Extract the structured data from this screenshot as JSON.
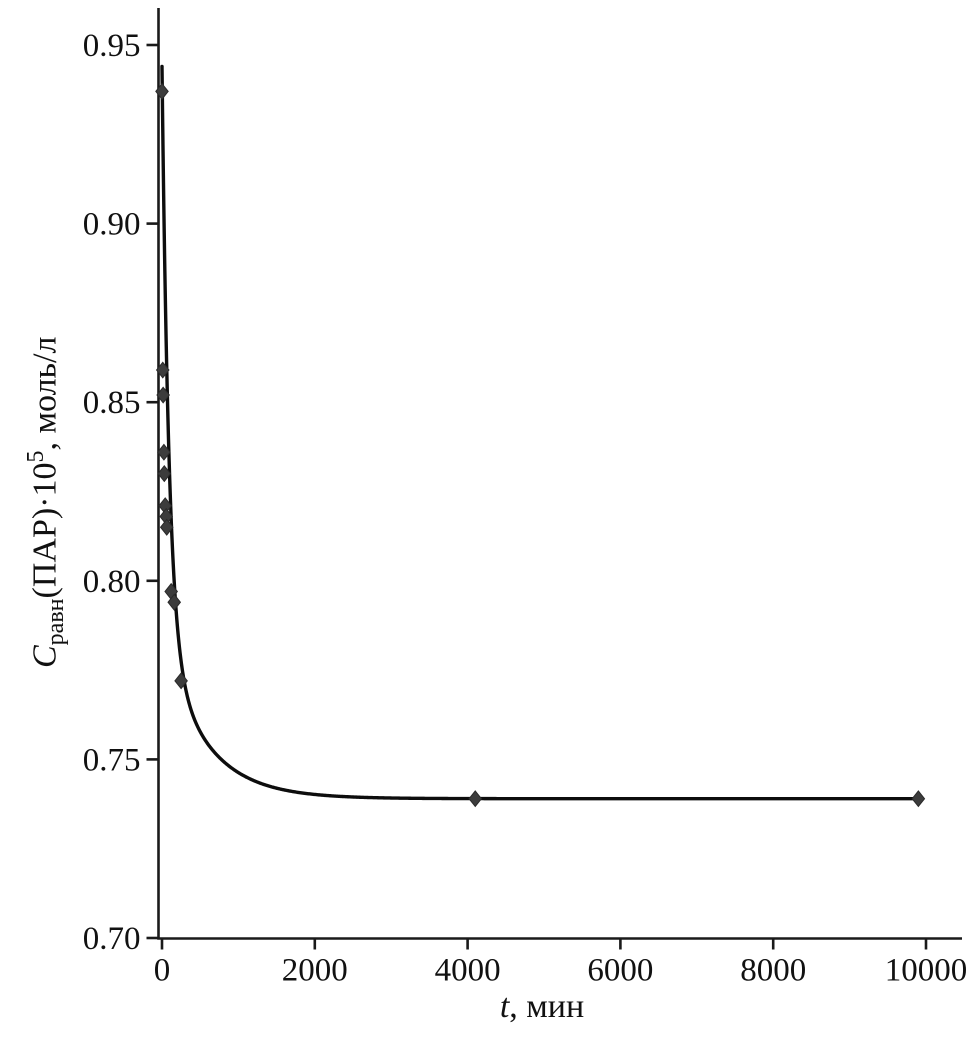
{
  "chart_data": {
    "type": "scatter",
    "title": "",
    "xlabel_parts": {
      "var": "t",
      "rest": ", мин"
    },
    "ylabel_parts": {
      "var": "C",
      "sub": "равн",
      "mid": "(ПАР)·10",
      "sup": "5",
      "rest": ", моль/л"
    },
    "xlim": [
      0,
      10000
    ],
    "ylim": [
      0.7,
      0.95
    ],
    "x_ticks": [
      0,
      2000,
      4000,
      6000,
      8000,
      10000
    ],
    "x_tick_labels": [
      "0",
      "2000",
      "4000",
      "6000",
      "8000",
      "10000"
    ],
    "y_ticks": [
      0.7,
      0.75,
      0.8,
      0.85,
      0.9,
      0.95
    ],
    "y_tick_labels": [
      "0.70",
      "0.75",
      "0.80",
      "0.85",
      "0.90",
      "0.95"
    ],
    "grid": false,
    "legend": "none",
    "marker": "diamond",
    "marker_color": "#3c3c3c",
    "line_color": "#0d0d0d",
    "points": [
      [
        0,
        0.937
      ],
      [
        10,
        0.859
      ],
      [
        15,
        0.852
      ],
      [
        25,
        0.836
      ],
      [
        30,
        0.83
      ],
      [
        42,
        0.821
      ],
      [
        55,
        0.818
      ],
      [
        62,
        0.815
      ],
      [
        120,
        0.797
      ],
      [
        160,
        0.794
      ],
      [
        250,
        0.772
      ],
      [
        4100,
        0.739
      ],
      [
        9900,
        0.739
      ]
    ],
    "fit_curve": {
      "model": "double_exponential",
      "baseline": 0.739,
      "a1": 0.16,
      "tau1": 90,
      "a2": 0.045,
      "tau2": 550
    }
  }
}
